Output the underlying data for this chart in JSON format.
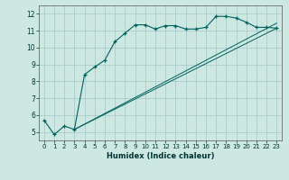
{
  "xlabel": "Humidex (Indice chaleur)",
  "bg_color": "#cce8e0",
  "grid_color": "#aacccc",
  "line_color": "#006060",
  "xlim": [
    -0.5,
    23.5
  ],
  "ylim": [
    4.5,
    12.5
  ],
  "yticks": [
    5,
    6,
    7,
    8,
    9,
    10,
    11,
    12
  ],
  "xticks": [
    0,
    1,
    2,
    3,
    4,
    5,
    6,
    7,
    8,
    9,
    10,
    11,
    12,
    13,
    14,
    15,
    16,
    17,
    18,
    19,
    20,
    21,
    22,
    23
  ],
  "line1_x": [
    0,
    1,
    2,
    3,
    4,
    5,
    6,
    7,
    8,
    9,
    10,
    11,
    12,
    13,
    14,
    15,
    16,
    17,
    18,
    19,
    20,
    21,
    22,
    23
  ],
  "line1_y": [
    5.7,
    4.85,
    5.35,
    5.15,
    8.4,
    8.85,
    9.25,
    10.35,
    10.85,
    11.35,
    11.35,
    11.1,
    11.3,
    11.3,
    11.1,
    11.1,
    11.2,
    11.85,
    11.85,
    11.75,
    11.5,
    11.2,
    11.2,
    11.15
  ],
  "line2_x": [
    3,
    23
  ],
  "line2_y": [
    5.15,
    11.15
  ],
  "line3_x": [
    3,
    23
  ],
  "line3_y": [
    5.15,
    11.15
  ]
}
